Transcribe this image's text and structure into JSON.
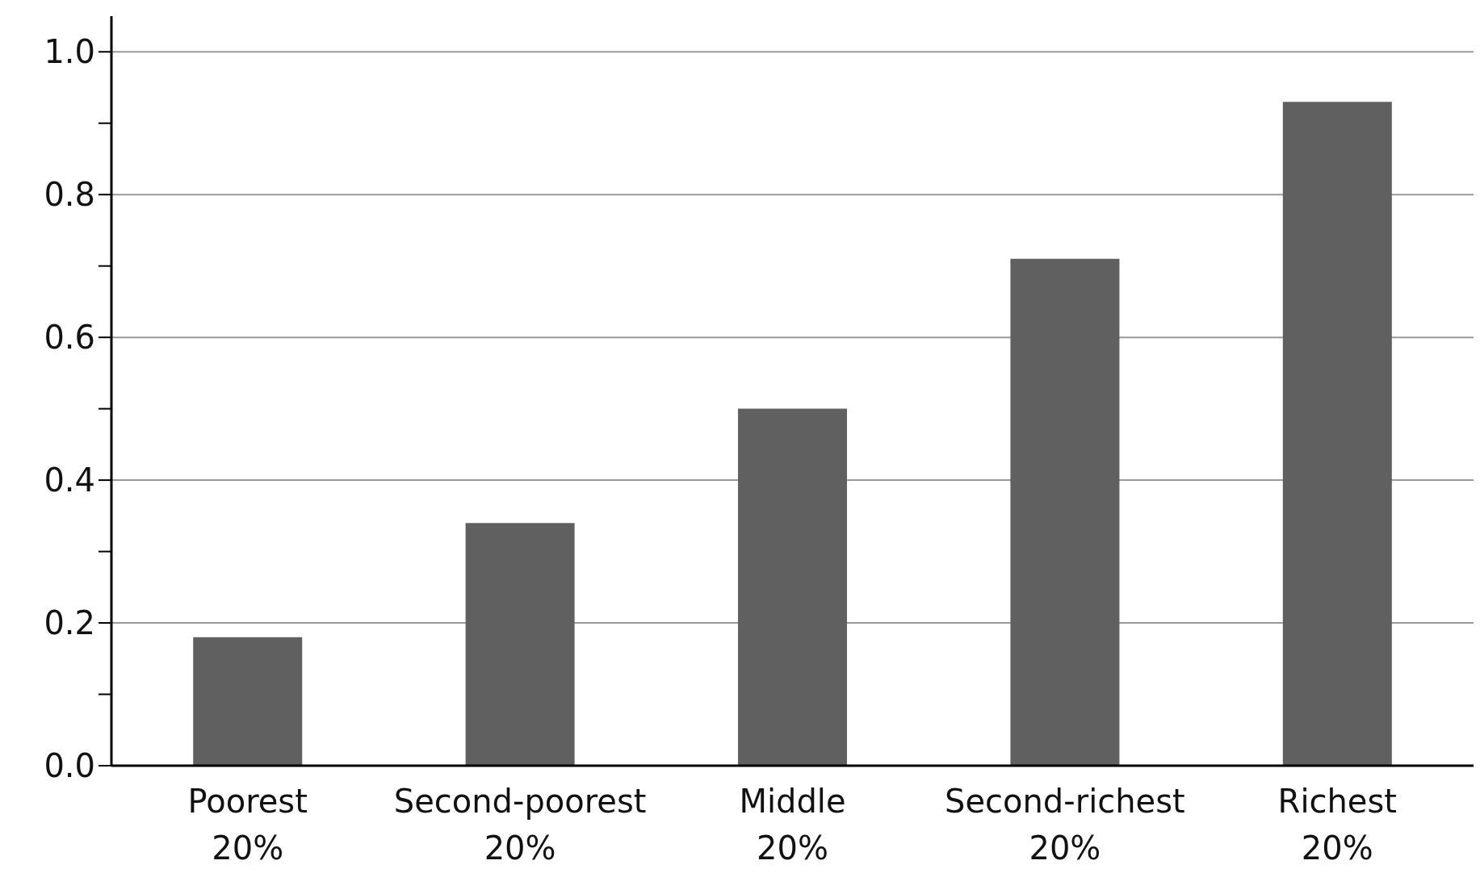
{
  "chart_data": {
    "type": "bar",
    "categories": [
      "Poorest 20%",
      "Second-poorest 20%",
      "Middle 20%",
      "Second-richest 20%",
      "Richest 20%"
    ],
    "values": [
      0.18,
      0.34,
      0.5,
      0.71,
      0.93
    ],
    "color": "#606060",
    "ylim": [
      0,
      1.05
    ],
    "yticks": [
      {
        "value": 0,
        "label": "0.0"
      },
      {
        "value": 0.1,
        "label": null
      },
      0.2,
      {
        "value": 0.3,
        "label": null
      },
      0.4,
      {
        "value": 0.5,
        "label": null
      },
      0.6,
      {
        "value": 0.7,
        "label": null
      },
      0.8,
      {
        "value": 0.9,
        "label": null
      },
      {
        "value": 1,
        "label": "1.0"
      }
    ],
    "grid": "y",
    "legend": false
  }
}
